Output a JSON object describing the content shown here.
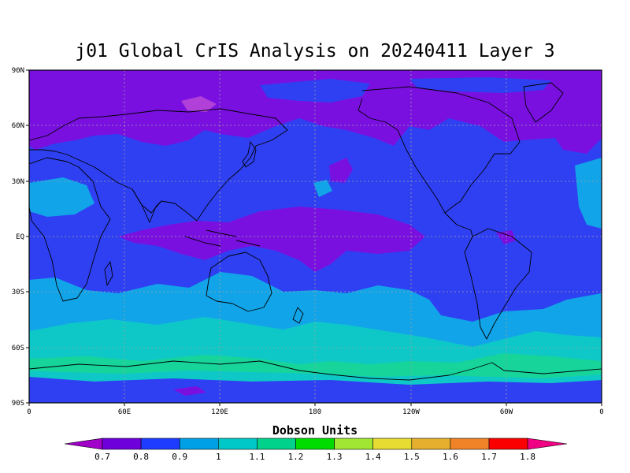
{
  "title": "j01 Global CrIS Analysis on 20240411 Layer 3",
  "lat_ticks": [
    "90N",
    "60N",
    "30N",
    "EQ",
    "30S",
    "60S",
    "90S"
  ],
  "lon_ticks": [
    "0",
    "60E",
    "120E",
    "180",
    "120W",
    "60W",
    "0"
  ],
  "colorbar": {
    "label": "Dobson Units",
    "ticks": [
      "0.7",
      "0.8",
      "0.9",
      "1",
      "1.1",
      "1.2",
      "1.3",
      "1.4",
      "1.5",
      "1.6",
      "1.7",
      "1.8"
    ],
    "colors": [
      "#a000c8",
      "#6e00dc",
      "#1e3cff",
      "#00a0e6",
      "#00c8c8",
      "#00d28c",
      "#00dc00",
      "#a0e632",
      "#e6dc32",
      "#e6af2d",
      "#f08228",
      "#fa0000",
      "#f00082"
    ]
  },
  "chart_data": {
    "type": "heatmap",
    "title": "j01 Global CrIS Analysis on 20240411 Layer 3",
    "legend_title": "Dobson Units",
    "x_ticks": [
      "0",
      "60E",
      "120E",
      "180",
      "120W",
      "60W",
      "0"
    ],
    "y_ticks": [
      "90N",
      "60N",
      "30N",
      "EQ",
      "30S",
      "60S",
      "90S"
    ],
    "xlim": [
      0,
      360
    ],
    "ylim": [
      -90,
      90
    ],
    "color_levels": [
      0.7,
      0.8,
      0.9,
      1.0,
      1.1,
      1.2,
      1.3,
      1.4,
      1.5,
      1.6,
      1.7,
      1.8
    ],
    "grid": true
  }
}
